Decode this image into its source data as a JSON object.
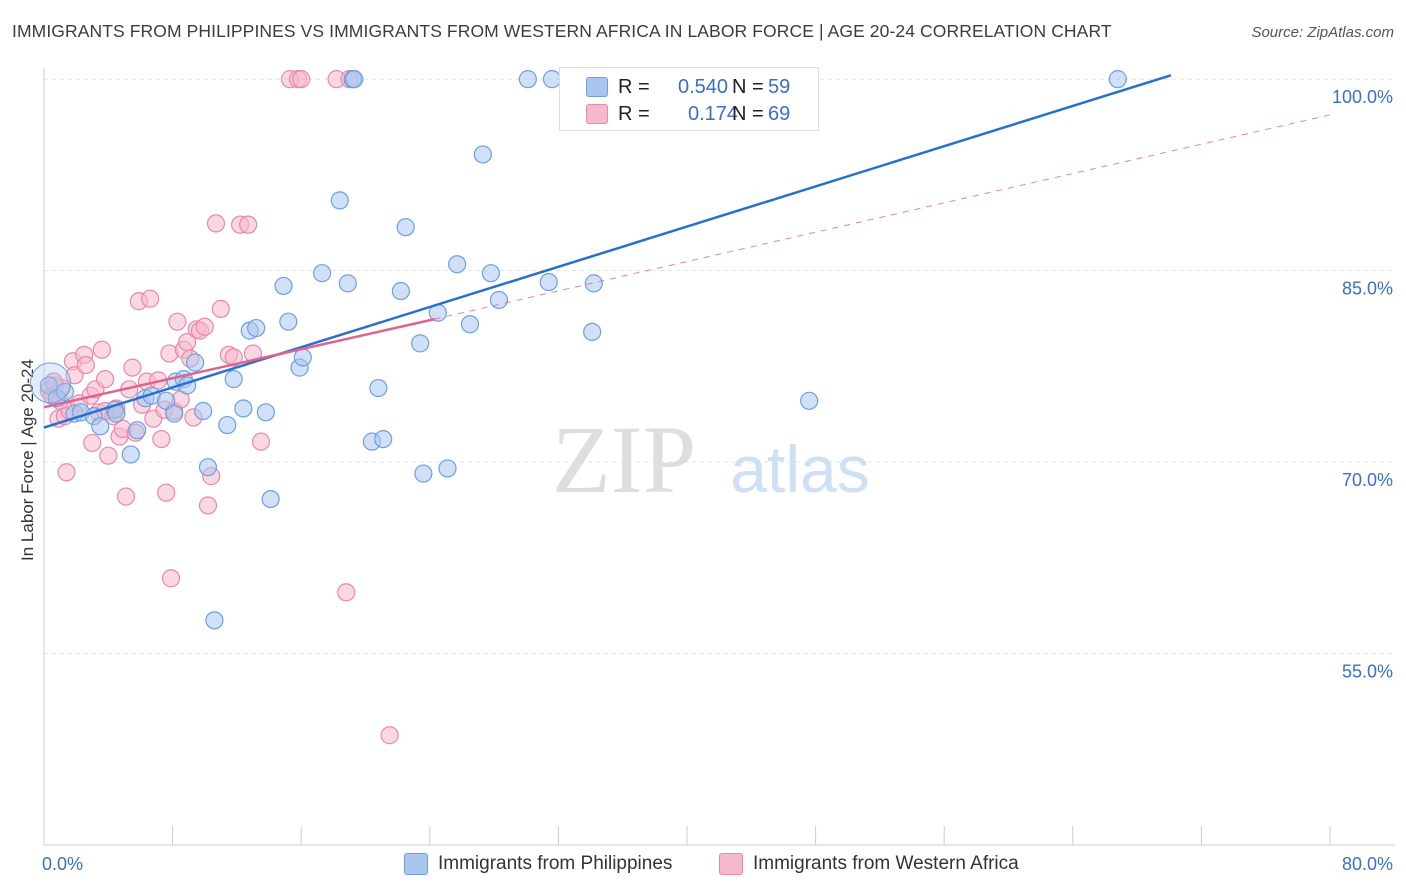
{
  "title": "IMMIGRANTS FROM PHILIPPINES VS IMMIGRANTS FROM WESTERN AFRICA IN LABOR FORCE | AGE 20-24 CORRELATION CHART",
  "source": "Source: ZipAtlas.com",
  "watermark": {
    "zip": "ZIP",
    "atlas": "atlas"
  },
  "legend": {
    "r_label": "R =",
    "n_label": "N =",
    "series": [
      {
        "r": "0.540",
        "n": "59"
      },
      {
        "r": "0.174",
        "n": "69"
      }
    ]
  },
  "colors": {
    "blue_fill": "#a9c6ee",
    "blue_stroke": "#6f9fe0",
    "blue_line": "#2a6fcf",
    "pink_fill": "#f6b8cc",
    "pink_stroke": "#ea88a8",
    "pink_line": "#e0628e",
    "axis_text": "#3a6fc9",
    "grid": "#e3e3e3"
  },
  "chart_data": {
    "type": "scatter",
    "title": "IMMIGRANTS FROM PHILIPPINES VS IMMIGRANTS FROM WESTERN AFRICA IN LABOR FORCE | AGE 20-24 CORRELATION CHART",
    "xlabel": "",
    "ylabel": "In Labor Force | Age 20-24",
    "xlim": [
      0,
      80
    ],
    "ylim": [
      40,
      101.5
    ],
    "x_tick_labels": [
      "0.0%",
      "80.0%"
    ],
    "y_ticks": [
      55,
      70,
      85,
      100
    ],
    "y_tick_labels": [
      "55.0%",
      "70.0%",
      "85.0%",
      "100.0%"
    ],
    "grid": true,
    "legend_position": "top-center",
    "series": [
      {
        "name": "Immigrants from Philippines",
        "color": "blue",
        "r": 0.54,
        "n": 59,
        "trend": {
          "x": [
            0,
            70.1
          ],
          "y": [
            72.7,
            100.3
          ],
          "style": "solid"
        },
        "points": [
          [
            0.3,
            76.0
          ],
          [
            0.8,
            75.0
          ],
          [
            1.3,
            75.5
          ],
          [
            1.9,
            73.8
          ],
          [
            2.3,
            73.9
          ],
          [
            3.1,
            73.6
          ],
          [
            3.5,
            72.8
          ],
          [
            4.4,
            74.1
          ],
          [
            4.5,
            73.8
          ],
          [
            5.4,
            70.6
          ],
          [
            5.8,
            72.5
          ],
          [
            6.3,
            75.0
          ],
          [
            6.7,
            75.2
          ],
          [
            7.6,
            74.8
          ],
          [
            8.2,
            76.3
          ],
          [
            8.1,
            73.8
          ],
          [
            8.7,
            76.5
          ],
          [
            8.9,
            76.0
          ],
          [
            9.4,
            77.8
          ],
          [
            9.9,
            74.0
          ],
          [
            10.2,
            69.6
          ],
          [
            10.6,
            57.6
          ],
          [
            11.4,
            72.9
          ],
          [
            11.8,
            76.5
          ],
          [
            12.4,
            74.2
          ],
          [
            12.8,
            80.3
          ],
          [
            13.2,
            80.5
          ],
          [
            13.8,
            73.9
          ],
          [
            14.1,
            67.1
          ],
          [
            14.9,
            83.8
          ],
          [
            15.2,
            81.0
          ],
          [
            15.9,
            77.4
          ],
          [
            16.1,
            78.2
          ],
          [
            17.3,
            84.8
          ],
          [
            18.4,
            90.5
          ],
          [
            18.9,
            84.0
          ],
          [
            19.2,
            100.0
          ],
          [
            19.3,
            100.0
          ],
          [
            20.4,
            71.6
          ],
          [
            20.8,
            75.8
          ],
          [
            21.1,
            71.8
          ],
          [
            22.2,
            83.4
          ],
          [
            22.5,
            88.4
          ],
          [
            23.4,
            79.3
          ],
          [
            23.6,
            69.1
          ],
          [
            24.5,
            81.7
          ],
          [
            25.1,
            69.5
          ],
          [
            25.7,
            85.5
          ],
          [
            26.5,
            80.8
          ],
          [
            27.3,
            94.1
          ],
          [
            27.8,
            84.8
          ],
          [
            28.3,
            82.7
          ],
          [
            30.1,
            100.0
          ],
          [
            31.6,
            100.0
          ],
          [
            31.4,
            84.1
          ],
          [
            34.2,
            84.0
          ],
          [
            34.1,
            80.2
          ],
          [
            47.6,
            74.8
          ],
          [
            66.8,
            100.0
          ]
        ]
      },
      {
        "name": "Immigrants from Western Africa",
        "color": "pink",
        "r": 0.174,
        "n": 69,
        "trend": {
          "x": [
            0,
            24.3
          ],
          "y": [
            74.3,
            81.2
          ],
          "style": "solid"
        },
        "trend_extension": {
          "x": [
            24.3,
            80
          ],
          "y": [
            81.2,
            97.2
          ],
          "style": "dashed"
        },
        "points": [
          [
            0.3,
            75.6
          ],
          [
            0.5,
            75.2
          ],
          [
            0.7,
            76.0
          ],
          [
            0.9,
            73.4
          ],
          [
            1.1,
            75.8
          ],
          [
            1.3,
            73.6
          ],
          [
            1.4,
            69.2
          ],
          [
            1.6,
            74.0
          ],
          [
            1.8,
            77.9
          ],
          [
            1.9,
            76.8
          ],
          [
            2.2,
            74.6
          ],
          [
            2.5,
            78.4
          ],
          [
            2.6,
            77.6
          ],
          [
            2.9,
            75.2
          ],
          [
            3.0,
            71.5
          ],
          [
            3.2,
            75.7
          ],
          [
            3.4,
            73.9
          ],
          [
            3.6,
            78.8
          ],
          [
            3.8,
            76.5
          ],
          [
            4.0,
            70.5
          ],
          [
            4.3,
            73.6
          ],
          [
            4.5,
            74.2
          ],
          [
            4.7,
            72.0
          ],
          [
            4.9,
            72.6
          ],
          [
            5.1,
            67.3
          ],
          [
            5.3,
            75.7
          ],
          [
            5.5,
            77.4
          ],
          [
            5.7,
            72.3
          ],
          [
            5.9,
            82.6
          ],
          [
            6.1,
            74.5
          ],
          [
            6.4,
            76.3
          ],
          [
            6.6,
            82.8
          ],
          [
            6.8,
            73.4
          ],
          [
            7.1,
            76.4
          ],
          [
            7.3,
            71.8
          ],
          [
            7.5,
            74.1
          ],
          [
            7.6,
            67.6
          ],
          [
            7.8,
            78.5
          ],
          [
            7.9,
            60.9
          ],
          [
            8.1,
            74.0
          ],
          [
            8.3,
            81.0
          ],
          [
            8.5,
            74.9
          ],
          [
            8.7,
            78.8
          ],
          [
            8.9,
            79.4
          ],
          [
            9.1,
            78.1
          ],
          [
            9.3,
            73.5
          ],
          [
            9.5,
            80.4
          ],
          [
            9.7,
            80.3
          ],
          [
            10.0,
            80.6
          ],
          [
            10.2,
            66.6
          ],
          [
            10.4,
            68.9
          ],
          [
            10.7,
            88.7
          ],
          [
            11.0,
            82.0
          ],
          [
            11.5,
            78.4
          ],
          [
            11.8,
            78.2
          ],
          [
            12.2,
            88.6
          ],
          [
            12.7,
            88.6
          ],
          [
            13.0,
            78.5
          ],
          [
            13.5,
            71.6
          ],
          [
            15.3,
            100.0
          ],
          [
            15.8,
            100.0
          ],
          [
            16.0,
            100.0
          ],
          [
            18.2,
            100.0
          ],
          [
            19.0,
            100.0
          ],
          [
            18.8,
            59.8
          ],
          [
            21.5,
            48.6
          ],
          [
            0.6,
            76.3
          ],
          [
            1.0,
            74.8
          ],
          [
            3.8,
            74.0
          ]
        ]
      }
    ]
  }
}
